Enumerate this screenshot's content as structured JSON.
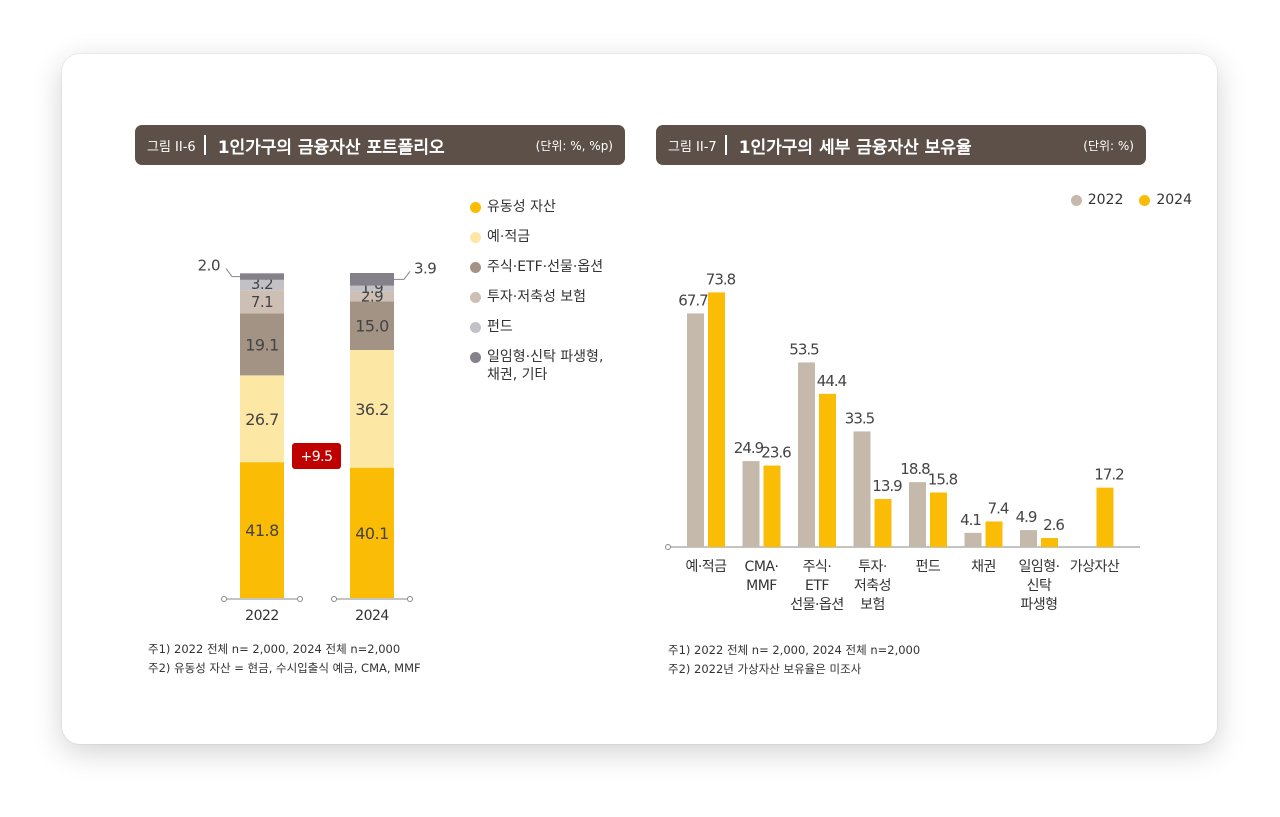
{
  "colors": {
    "header_bg": "#5c5048",
    "liquid": "#fbbc05",
    "deposit": "#fde7a4",
    "stock": "#a29384",
    "invest": "#cdbfb3",
    "fund": "#c2c2c6",
    "other": "#85818a",
    "y2022": "#c5b9ab",
    "y2024": "#fbbc05",
    "badge": "#c00000"
  },
  "left": {
    "fig_label": "그림 II-6",
    "title": "1인가구의 금융자산 포트폴리오",
    "unit": "(단위: %, %p)",
    "notes": [
      "주1) 2022 전체 n= 2,000, 2024 전체 n=2,000",
      "주2) 유동성 자산 = 현금, 수시입출식 예금, CMA, MMF"
    ]
  },
  "right": {
    "fig_label": "그림 II-7",
    "title": "1인가구의 세부 금융자산 보유율",
    "unit": "(단위: %)",
    "notes": [
      "주1) 2022 전체 n= 2,000, 2024 전체 n=2,000",
      "주2) 2022년 가상자산 보유율은 미조사"
    ]
  },
  "chart_data": [
    {
      "type": "bar",
      "stacked": true,
      "categories": [
        "2022",
        "2024"
      ],
      "series": [
        {
          "name": "유동성 자산",
          "color": "#fbbc05",
          "values": [
            41.8,
            40.1
          ]
        },
        {
          "name": "예·적금",
          "color": "#fde7a4",
          "values": [
            26.7,
            36.2
          ]
        },
        {
          "name": "주식·ETF·선물·옵션",
          "color": "#a29384",
          "values": [
            19.1,
            15.0
          ]
        },
        {
          "name": "투자·저축성 보험",
          "color": "#cdbfb3",
          "values": [
            7.1,
            2.9
          ]
        },
        {
          "name": "펀드",
          "color": "#c2c2c6",
          "values": [
            3.2,
            1.9
          ]
        },
        {
          "name": "일임형·신탁 파생형, 채권, 기타",
          "color": "#85818a",
          "values": [
            2.0,
            3.9
          ]
        }
      ],
      "value_labels": [
        [
          "41.8",
          "26.7",
          "19.1",
          "7.1",
          "3.2",
          "2.0"
        ],
        [
          "40.1",
          "36.2",
          "15.0",
          "2.9",
          "1.9",
          "3.9"
        ]
      ],
      "annotation": "+9.5",
      "ylim": [
        0,
        100
      ]
    },
    {
      "type": "bar",
      "categories": [
        [
          "예·적금"
        ],
        [
          "CMA·",
          "MMF"
        ],
        [
          "주식·",
          "ETF",
          "선물·옵션"
        ],
        [
          "투자·",
          "저축성",
          "보험"
        ],
        [
          "펀드"
        ],
        [
          "채권"
        ],
        [
          "일임형·",
          "신탁",
          "파생형"
        ],
        [
          "가상자산"
        ]
      ],
      "series": [
        {
          "name": "2022",
          "color": "#c5b9ab",
          "values": [
            67.7,
            24.9,
            53.5,
            33.5,
            18.8,
            4.1,
            4.9,
            null
          ],
          "labels": [
            "67.7",
            "24.9",
            "53.5",
            "33.5",
            "18.8",
            "4.1",
            "4.9",
            ""
          ]
        },
        {
          "name": "2024",
          "color": "#fbbc05",
          "values": [
            73.8,
            23.6,
            44.4,
            13.9,
            15.8,
            7.4,
            2.6,
            17.2
          ],
          "labels": [
            "73.8",
            "23.6",
            "44.4",
            "13.9",
            "15.8",
            "7.4",
            "2.6",
            "17.2"
          ]
        }
      ],
      "ylim": [
        0,
        80
      ]
    }
  ]
}
